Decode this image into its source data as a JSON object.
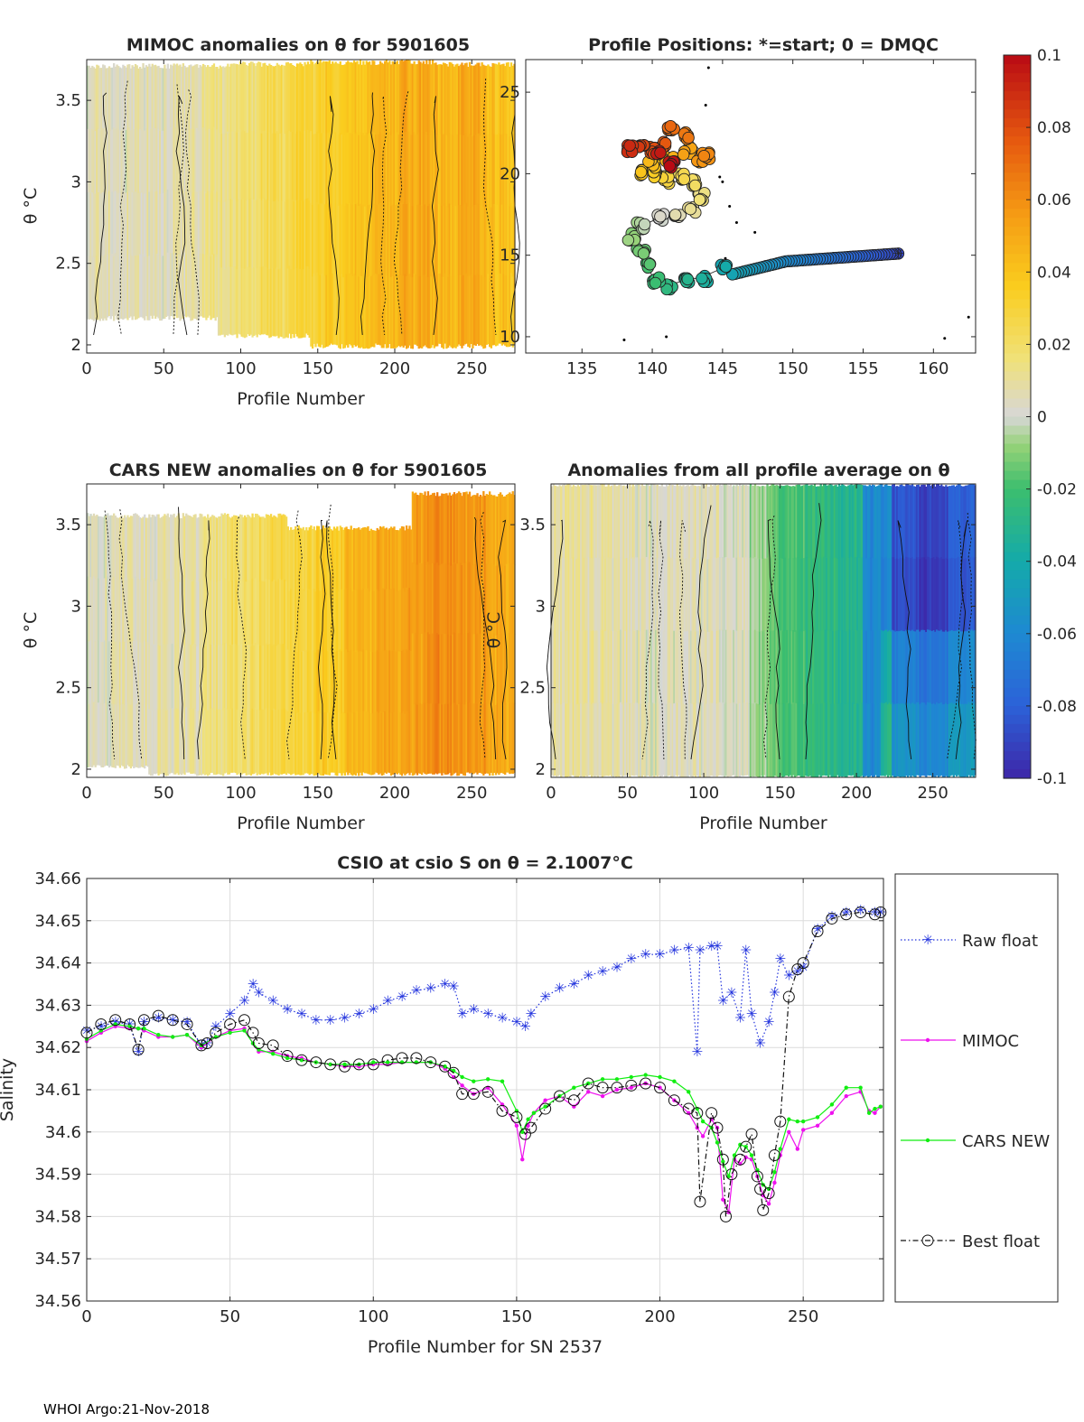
{
  "footer": "WHOI Argo:21-Nov-2018",
  "colorbar": {
    "ticks": [
      "0.1",
      "0.08",
      "0.06",
      "0.04",
      "0.02",
      "0",
      "-0.02",
      "-0.04",
      "-0.06",
      "-0.08",
      "-0.1"
    ],
    "range": [
      -0.1,
      0.1
    ]
  },
  "chart_data": [
    {
      "type": "heatmap",
      "title": "MIMOC anomalies on θ  for 5901605",
      "xlabel": "Profile Number",
      "ylabel": "θ °C",
      "xlim": [
        0,
        278
      ],
      "ylim": [
        1.95,
        3.75
      ],
      "xticks": [
        "0",
        "50",
        "100",
        "150",
        "200",
        "250"
      ],
      "yticks": [
        "2",
        "2.5",
        "3",
        "3.5"
      ],
      "anomaly_by_profile_block": [
        0.005,
        0.005,
        0.006,
        0.007,
        0.012,
        0.018,
        0.024,
        0.03,
        0.035,
        0.04,
        0.045,
        0.05,
        0.045,
        0.05,
        0.04
      ]
    },
    {
      "type": "scatter",
      "title": "Profile Positions: *=start; 0 = DMQC",
      "xlabel": "",
      "ylabel": "",
      "xlim": [
        131,
        163
      ],
      "ylim": [
        9,
        27
      ],
      "xticks": [
        "135",
        "140",
        "145",
        "150",
        "155",
        "160"
      ],
      "yticks": [
        "10",
        "15",
        "20",
        "25"
      ],
      "start": [
        157.5,
        15.1
      ]
    },
    {
      "type": "heatmap",
      "title": "CARS NEW anomalies on θ for 5901605",
      "xlabel": "Profile Number",
      "ylabel": "θ °C",
      "xlim": [
        0,
        278
      ],
      "ylim": [
        1.95,
        3.75
      ],
      "xticks": [
        "0",
        "50",
        "100",
        "150",
        "200",
        "250"
      ],
      "yticks": [
        "2",
        "2.5",
        "3",
        "3.5"
      ],
      "anomaly_by_profile_block": [
        0.004,
        0.005,
        0.006,
        0.008,
        0.014,
        0.02,
        0.025,
        0.03,
        0.036,
        0.045,
        0.05,
        0.055,
        0.06,
        0.055,
        0.05
      ]
    },
    {
      "type": "heatmap",
      "title": "Anomalies from all profile average on θ",
      "xlabel": "Profile Number",
      "ylabel": "θ °C",
      "xlim": [
        0,
        278
      ],
      "ylim": [
        1.95,
        3.75
      ],
      "xticks": [
        "0",
        "50",
        "100",
        "150",
        "200",
        "250"
      ],
      "yticks": [
        "2",
        "2.5",
        "3",
        "3.5"
      ],
      "anomaly_by_profile_block": [
        0.01,
        0.008,
        0.006,
        0.004,
        0.004,
        0.006,
        0.002,
        -0.01,
        -0.02,
        -0.025,
        -0.03,
        -0.06,
        -0.085,
        -0.09,
        -0.08
      ]
    },
    {
      "type": "line",
      "title": "CSIO at csio S on θ = 2.1007°C",
      "xlabel": "Profile Number for SN 2537",
      "ylabel": "Salinity",
      "xlim": [
        0,
        278
      ],
      "ylim": [
        34.56,
        34.66
      ],
      "xticks": [
        "0",
        "50",
        "100",
        "150",
        "200",
        "250"
      ],
      "yticks": [
        "34.56",
        "34.57",
        "34.58",
        "34.59",
        "34.6",
        "34.61",
        "34.62",
        "34.63",
        "34.64",
        "34.65",
        "34.66"
      ],
      "legend": [
        "Raw float",
        "MIMOC",
        "CARS NEW",
        "Best float"
      ],
      "legend_location": "outside-right",
      "series": [
        {
          "name": "Raw float",
          "x": [
            0,
            5,
            10,
            15,
            18,
            20,
            25,
            30,
            35,
            40,
            42,
            45,
            50,
            55,
            58,
            60,
            65,
            70,
            75,
            80,
            85,
            90,
            95,
            100,
            105,
            110,
            115,
            120,
            125,
            128,
            131,
            135,
            140,
            145,
            150,
            153,
            155,
            160,
            165,
            170,
            175,
            180,
            185,
            190,
            195,
            200,
            205,
            210,
            213,
            214,
            218,
            220,
            222,
            225,
            228,
            230,
            232,
            235,
            238,
            240,
            242,
            245,
            248,
            250,
            255,
            260,
            265,
            270,
            275,
            277
          ],
          "y": [
            34.624,
            34.625,
            34.626,
            34.6255,
            34.619,
            34.626,
            34.627,
            34.6265,
            34.626,
            34.6205,
            34.621,
            34.625,
            34.628,
            34.631,
            34.635,
            34.633,
            34.631,
            34.629,
            34.628,
            34.6265,
            34.6265,
            34.627,
            34.628,
            34.629,
            34.631,
            34.632,
            34.6335,
            34.634,
            34.635,
            34.6345,
            34.628,
            34.629,
            34.628,
            34.627,
            34.626,
            34.625,
            34.628,
            34.632,
            34.634,
            34.635,
            34.637,
            34.638,
            34.639,
            34.641,
            34.642,
            34.642,
            34.643,
            34.6435,
            34.619,
            34.643,
            34.644,
            34.644,
            34.631,
            34.633,
            34.627,
            34.643,
            34.628,
            34.621,
            34.626,
            34.633,
            34.641,
            34.637,
            34.638,
            34.639,
            34.648,
            34.651,
            34.652,
            34.6525,
            34.652,
            34.652
          ]
        },
        {
          "name": "MIMOC",
          "x": [
            0,
            5,
            10,
            15,
            18,
            20,
            25,
            30,
            35,
            40,
            45,
            50,
            55,
            58,
            60,
            65,
            70,
            75,
            80,
            85,
            90,
            95,
            100,
            105,
            110,
            115,
            120,
            125,
            128,
            131,
            135,
            140,
            145,
            150,
            152,
            154,
            156,
            160,
            165,
            170,
            175,
            180,
            185,
            190,
            195,
            200,
            205,
            210,
            213,
            215,
            218,
            220,
            222,
            224,
            226,
            228,
            230,
            232,
            234,
            236,
            238,
            240,
            242,
            245,
            248,
            250,
            255,
            260,
            265,
            270,
            273,
            275,
            277
          ],
          "y": [
            34.6215,
            34.6235,
            34.625,
            34.6245,
            34.6245,
            34.624,
            34.6225,
            34.6225,
            34.623,
            34.62,
            34.6225,
            34.624,
            34.6245,
            34.621,
            34.619,
            34.619,
            34.618,
            34.6175,
            34.6165,
            34.616,
            34.6155,
            34.6155,
            34.616,
            34.616,
            34.6165,
            34.6165,
            34.6165,
            34.615,
            34.613,
            34.611,
            34.609,
            34.6105,
            34.6065,
            34.6015,
            34.5935,
            34.6015,
            34.6045,
            34.6075,
            34.6085,
            34.606,
            34.6095,
            34.6085,
            34.61,
            34.6105,
            34.6115,
            34.6105,
            34.6075,
            34.6045,
            34.601,
            34.599,
            34.603,
            34.601,
            34.584,
            34.581,
            34.5935,
            34.5925,
            34.594,
            34.5935,
            34.5895,
            34.585,
            34.583,
            34.588,
            34.5945,
            34.6,
            34.596,
            34.6005,
            34.6015,
            34.6045,
            34.6085,
            34.6095,
            34.605,
            34.6045,
            34.606
          ]
        },
        {
          "name": "CARS NEW",
          "x": [
            0,
            5,
            10,
            15,
            18,
            20,
            25,
            30,
            35,
            40,
            45,
            50,
            55,
            58,
            60,
            65,
            70,
            75,
            80,
            85,
            90,
            95,
            100,
            105,
            110,
            115,
            120,
            125,
            128,
            131,
            135,
            140,
            145,
            150,
            152,
            154,
            156,
            160,
            165,
            170,
            175,
            180,
            185,
            190,
            195,
            200,
            205,
            210,
            213,
            215,
            218,
            220,
            222,
            224,
            226,
            228,
            230,
            232,
            234,
            236,
            238,
            240,
            242,
            245,
            248,
            250,
            255,
            260,
            265,
            270,
            273,
            275,
            277
          ],
          "y": [
            34.622,
            34.624,
            34.6255,
            34.625,
            34.6245,
            34.6245,
            34.623,
            34.6225,
            34.623,
            34.6205,
            34.6225,
            34.6235,
            34.624,
            34.621,
            34.6195,
            34.6185,
            34.6175,
            34.617,
            34.6165,
            34.616,
            34.616,
            34.616,
            34.6165,
            34.6165,
            34.6165,
            34.6165,
            34.6165,
            34.6155,
            34.6145,
            34.613,
            34.612,
            34.6125,
            34.612,
            34.605,
            34.6,
            34.603,
            34.6045,
            34.606,
            34.6085,
            34.6105,
            34.6115,
            34.6125,
            34.6125,
            34.613,
            34.6135,
            34.613,
            34.612,
            34.6095,
            34.6055,
            34.6025,
            34.601,
            34.5975,
            34.593,
            34.5895,
            34.5945,
            34.597,
            34.5965,
            34.5945,
            34.591,
            34.5875,
            34.5865,
            34.5905,
            34.596,
            34.603,
            34.6025,
            34.6025,
            34.6035,
            34.6065,
            34.6105,
            34.6105,
            34.6045,
            34.6055,
            34.606
          ]
        },
        {
          "name": "Best float",
          "x": [
            0,
            5,
            10,
            15,
            18,
            20,
            25,
            30,
            35,
            40,
            42,
            45,
            50,
            55,
            58,
            60,
            65,
            70,
            75,
            80,
            85,
            90,
            95,
            100,
            105,
            110,
            115,
            120,
            125,
            128,
            131,
            135,
            140,
            145,
            150,
            153,
            155,
            160,
            165,
            170,
            175,
            180,
            185,
            190,
            195,
            200,
            205,
            210,
            213,
            214,
            218,
            220,
            222,
            223,
            225,
            228,
            230,
            232,
            234,
            235,
            236,
            238,
            240,
            242,
            245,
            248,
            250,
            255,
            260,
            265,
            270,
            275,
            277
          ],
          "y": [
            34.6235,
            34.6255,
            34.6265,
            34.6255,
            34.6195,
            34.6265,
            34.6275,
            34.6265,
            34.6255,
            34.6205,
            34.621,
            34.6235,
            34.6255,
            34.6265,
            34.6235,
            34.621,
            34.6205,
            34.618,
            34.617,
            34.6165,
            34.616,
            34.6155,
            34.616,
            34.616,
            34.617,
            34.6175,
            34.6175,
            34.6165,
            34.6155,
            34.614,
            34.609,
            34.609,
            34.6095,
            34.605,
            34.6035,
            34.5995,
            34.601,
            34.6055,
            34.6085,
            34.6075,
            34.6115,
            34.6105,
            34.6105,
            34.611,
            34.6115,
            34.6105,
            34.6075,
            34.6055,
            34.6045,
            34.5835,
            34.6045,
            34.601,
            34.5935,
            34.58,
            34.59,
            34.5935,
            34.5965,
            34.5995,
            34.5895,
            34.5865,
            34.5815,
            34.5855,
            34.5945,
            34.6025,
            34.632,
            34.6385,
            34.64,
            34.6475,
            34.6505,
            34.6515,
            34.652,
            34.6515,
            34.652
          ]
        }
      ]
    }
  ]
}
